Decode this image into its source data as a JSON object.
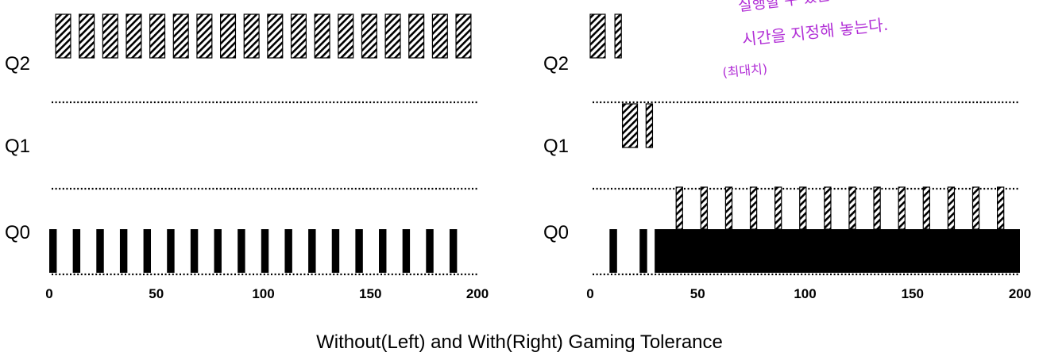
{
  "caption": "Without(Left) and With(Right) Gaming Tolerance",
  "annotation_lines": [
    "실행할 수 있는 최대",
    "시간을 지정해 놓는다.",
    "(최대치)"
  ],
  "colors": {
    "job_a": "#000000",
    "job_b_fill": "#ffffff",
    "hatch": "#000000",
    "annotation": "#b12ed6"
  },
  "chart_data": [
    {
      "id": "left",
      "type": "timeline",
      "title": "",
      "xlabel": "",
      "ylabel": "",
      "xlim": [
        0,
        200
      ],
      "xticks": [
        "0",
        "50",
        "100",
        "150",
        "200"
      ],
      "queues": [
        "Q2",
        "Q1",
        "Q0"
      ],
      "series": [
        {
          "style": "solid",
          "segments": [
            {
              "queue": "Q0",
              "start": 0,
              "end": 3.5
            },
            {
              "queue": "Q0",
              "start": 11,
              "end": 14.5
            },
            {
              "queue": "Q0",
              "start": 22,
              "end": 25.5
            },
            {
              "queue": "Q0",
              "start": 33,
              "end": 36.5
            },
            {
              "queue": "Q0",
              "start": 44,
              "end": 47.5
            },
            {
              "queue": "Q0",
              "start": 55,
              "end": 58.5
            },
            {
              "queue": "Q0",
              "start": 66,
              "end": 69.5
            },
            {
              "queue": "Q0",
              "start": 77,
              "end": 80.5
            },
            {
              "queue": "Q0",
              "start": 88,
              "end": 91.5
            },
            {
              "queue": "Q0",
              "start": 99,
              "end": 102.5
            },
            {
              "queue": "Q0",
              "start": 110,
              "end": 113.5
            },
            {
              "queue": "Q0",
              "start": 121,
              "end": 124.5
            },
            {
              "queue": "Q0",
              "start": 132,
              "end": 135.5
            },
            {
              "queue": "Q0",
              "start": 143,
              "end": 146.5
            },
            {
              "queue": "Q0",
              "start": 154,
              "end": 157.5
            },
            {
              "queue": "Q0",
              "start": 165,
              "end": 168.5
            },
            {
              "queue": "Q0",
              "start": 176,
              "end": 179.5
            },
            {
              "queue": "Q0",
              "start": 187,
              "end": 190.5
            }
          ]
        },
        {
          "style": "hatched",
          "segments": [
            {
              "queue": "Q2",
              "start": 3,
              "end": 10
            },
            {
              "queue": "Q2",
              "start": 14,
              "end": 21
            },
            {
              "queue": "Q2",
              "start": 25,
              "end": 32
            },
            {
              "queue": "Q2",
              "start": 36,
              "end": 43
            },
            {
              "queue": "Q2",
              "start": 47,
              "end": 54
            },
            {
              "queue": "Q2",
              "start": 58,
              "end": 65
            },
            {
              "queue": "Q2",
              "start": 69,
              "end": 76
            },
            {
              "queue": "Q2",
              "start": 80,
              "end": 87
            },
            {
              "queue": "Q2",
              "start": 91,
              "end": 98
            },
            {
              "queue": "Q2",
              "start": 102,
              "end": 109
            },
            {
              "queue": "Q2",
              "start": 113,
              "end": 120
            },
            {
              "queue": "Q2",
              "start": 124,
              "end": 131
            },
            {
              "queue": "Q2",
              "start": 135,
              "end": 142
            },
            {
              "queue": "Q2",
              "start": 146,
              "end": 153
            },
            {
              "queue": "Q2",
              "start": 157,
              "end": 164
            },
            {
              "queue": "Q2",
              "start": 168,
              "end": 175
            },
            {
              "queue": "Q2",
              "start": 179,
              "end": 186
            },
            {
              "queue": "Q2",
              "start": 190,
              "end": 197
            }
          ]
        }
      ]
    },
    {
      "id": "right",
      "type": "timeline",
      "title": "",
      "xlabel": "",
      "ylabel": "",
      "xlim": [
        0,
        200
      ],
      "xticks": [
        "0",
        "50",
        "100",
        "150",
        "200"
      ],
      "queues": [
        "Q2",
        "Q1",
        "Q0"
      ],
      "series": [
        {
          "style": "hatched",
          "segments": [
            {
              "queue": "Q2",
              "start": 0,
              "end": 7
            },
            {
              "queue": "Q2",
              "start": 11.5,
              "end": 14.5
            },
            {
              "queue": "Q1",
              "start": 15,
              "end": 22
            },
            {
              "queue": "Q1",
              "start": 26,
              "end": 29
            }
          ]
        },
        {
          "style": "solid",
          "segments": [
            {
              "queue": "Q0",
              "start": 9,
              "end": 12.5
            },
            {
              "queue": "Q0",
              "start": 23,
              "end": 26.5
            },
            {
              "queue": "Q0",
              "start": 30,
              "end": 200
            }
          ]
        },
        {
          "style": "hatched-white",
          "segments": [
            {
              "queue": "Q0",
              "start": 40,
              "end": 43
            },
            {
              "queue": "Q0",
              "start": 51.5,
              "end": 54.5
            },
            {
              "queue": "Q0",
              "start": 63,
              "end": 66
            },
            {
              "queue": "Q0",
              "start": 74.5,
              "end": 77.5
            },
            {
              "queue": "Q0",
              "start": 86,
              "end": 89
            },
            {
              "queue": "Q0",
              "start": 97.5,
              "end": 100.5
            },
            {
              "queue": "Q0",
              "start": 109,
              "end": 112
            },
            {
              "queue": "Q0",
              "start": 120.5,
              "end": 123.5
            },
            {
              "queue": "Q0",
              "start": 132,
              "end": 135
            },
            {
              "queue": "Q0",
              "start": 143.5,
              "end": 146.5
            },
            {
              "queue": "Q0",
              "start": 155,
              "end": 158
            },
            {
              "queue": "Q0",
              "start": 166.5,
              "end": 169.5
            },
            {
              "queue": "Q0",
              "start": 178,
              "end": 181
            },
            {
              "queue": "Q0",
              "start": 189.5,
              "end": 192.5
            }
          ]
        }
      ]
    }
  ]
}
